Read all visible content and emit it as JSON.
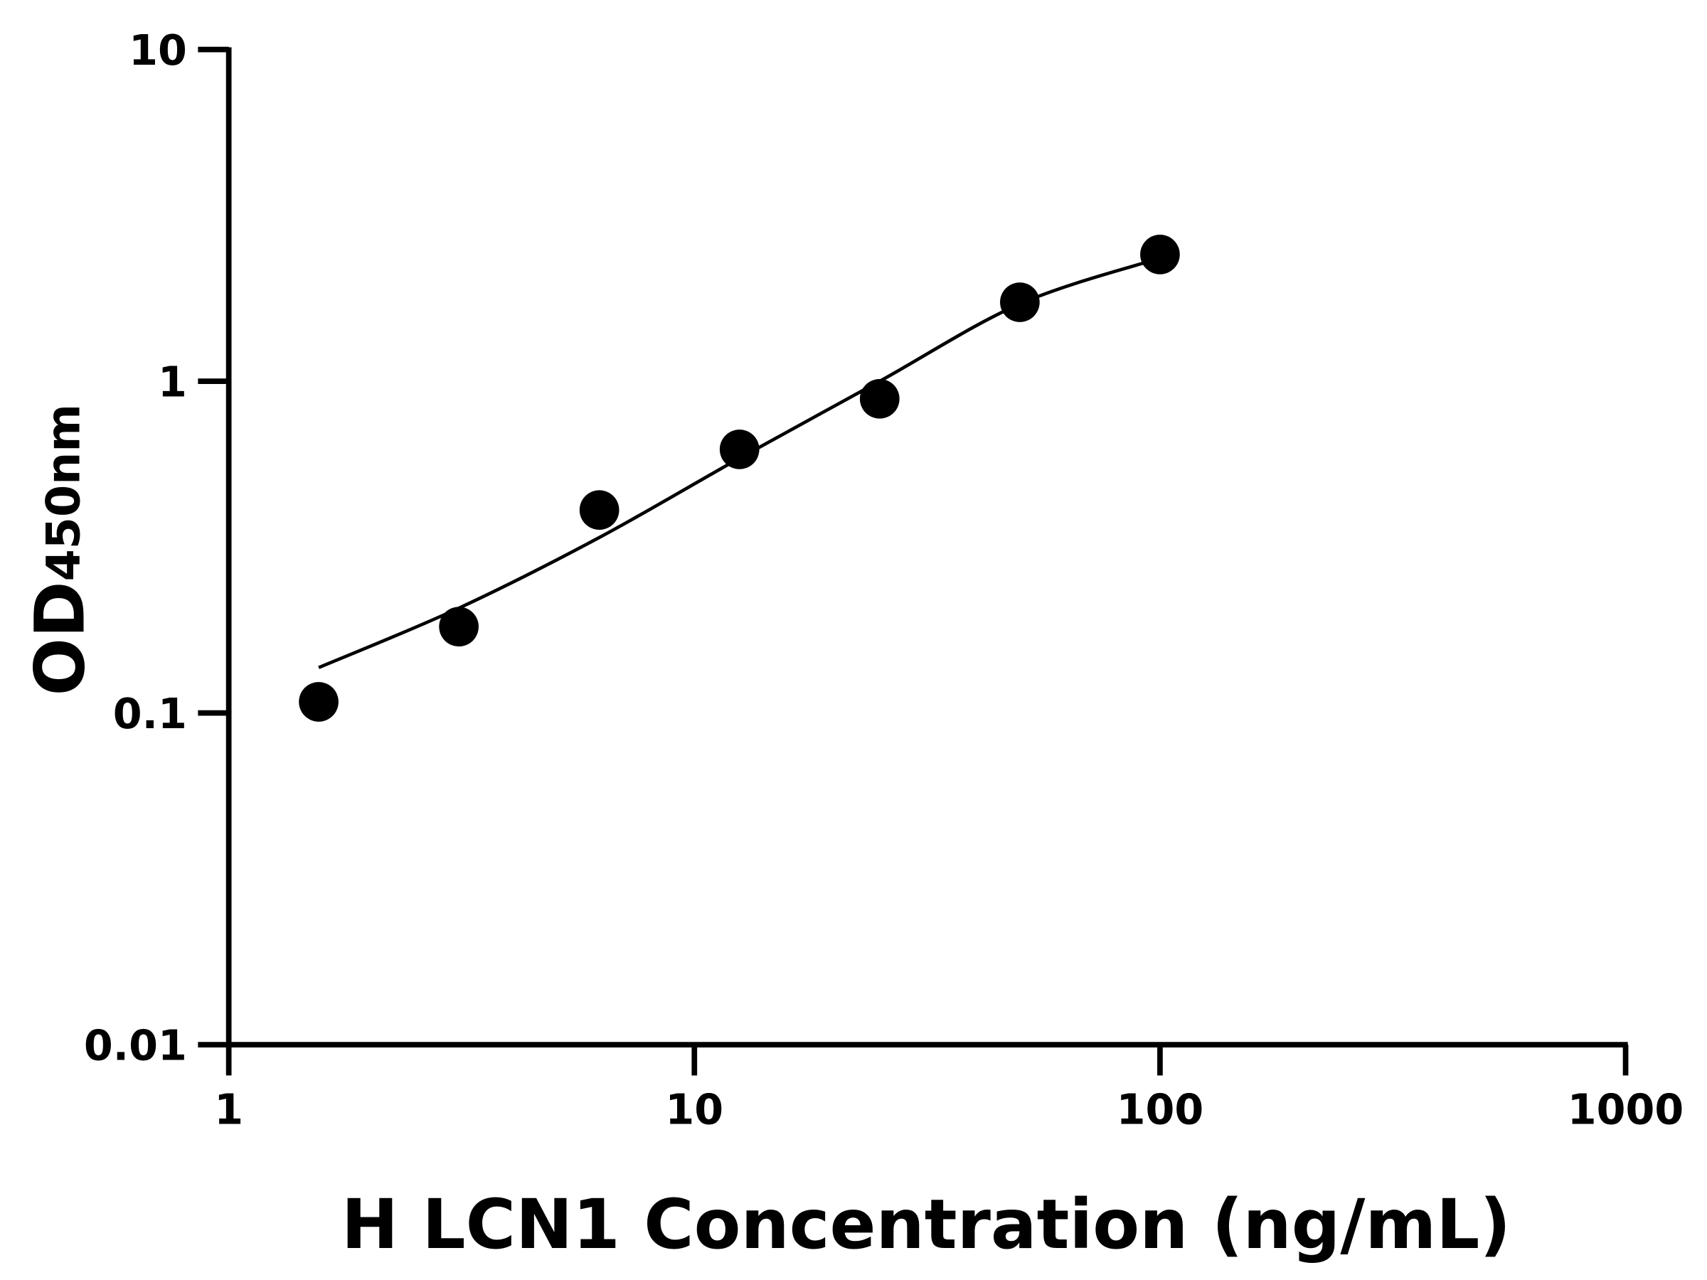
{
  "chart_data": {
    "type": "scatter",
    "title": "",
    "xlabel": "H LCN1 Concentration (ng/mL)",
    "ylabel_main": "OD",
    "ylabel_sub": "450nm",
    "x_scale": "log",
    "y_scale": "log",
    "xlim": [
      1,
      1000
    ],
    "ylim": [
      0.01,
      10
    ],
    "x_ticks": [
      "1",
      "10",
      "100",
      "1000"
    ],
    "x_tick_values": [
      1,
      10,
      100,
      1000
    ],
    "y_ticks": [
      "0.01",
      "0.1",
      "1",
      "10"
    ],
    "y_tick_values": [
      0.01,
      0.1,
      1,
      10
    ],
    "grid": false,
    "legend": "none",
    "points": {
      "x": [
        1.56,
        3.12,
        6.25,
        12.5,
        25,
        50,
        100
      ],
      "y": [
        0.108,
        0.182,
        0.409,
        0.623,
        0.885,
        1.73,
        2.41
      ]
    },
    "fit_curve": {
      "x": [
        1.56,
        3.12,
        6.25,
        12.5,
        25,
        50,
        100
      ],
      "y": [
        0.137,
        0.207,
        0.338,
        0.586,
        1.0,
        1.71,
        2.35
      ]
    },
    "color": "#000000"
  }
}
